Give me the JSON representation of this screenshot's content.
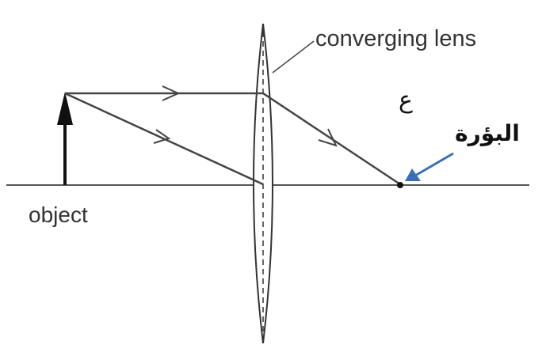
{
  "labels": {
    "lens": "converging lens",
    "object": "object",
    "focus_symbol": "ع",
    "focus_arabic": "البؤرة"
  },
  "colors": {
    "line": "#444444",
    "axis": "#555555",
    "object_arrow": "#111111",
    "pointer_arrow": "#3a6fb5",
    "background": "#ffffff"
  }
}
